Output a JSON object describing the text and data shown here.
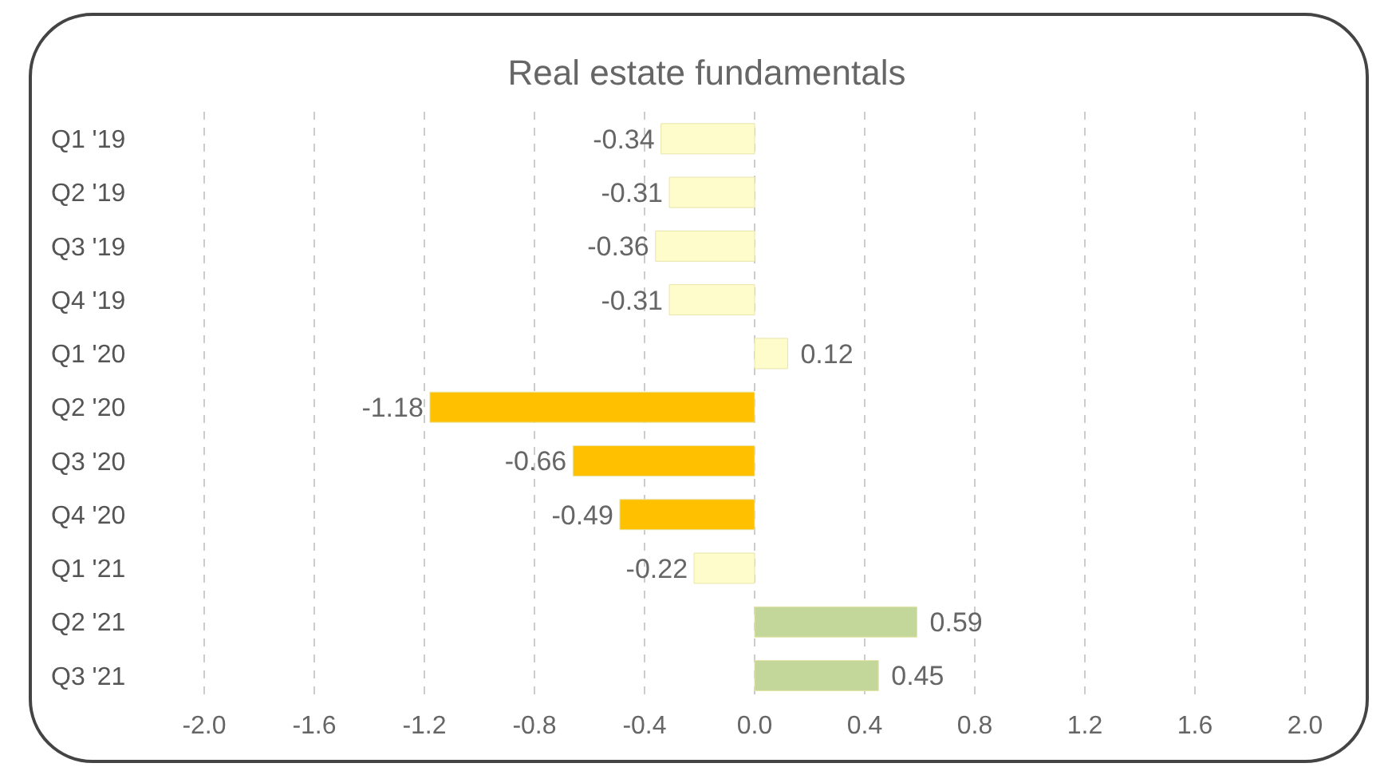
{
  "chart_data": {
    "type": "bar",
    "title": "Real estate fundamentals",
    "orientation": "horizontal",
    "categories": [
      "Q1 '19",
      "Q2 '19",
      "Q3 '19",
      "Q4 '19",
      "Q1 '20",
      "Q2 '20",
      "Q3 '20",
      "Q4 '20",
      "Q1 '21",
      "Q2 '21",
      "Q3 '21"
    ],
    "values": [
      -0.34,
      -0.31,
      -0.36,
      -0.31,
      0.12,
      -1.18,
      -0.66,
      -0.49,
      -0.22,
      0.59,
      0.45
    ],
    "colors": [
      "#fffccc",
      "#fffccc",
      "#fffccc",
      "#fffccc",
      "#fffccc",
      "#ffc000",
      "#ffc000",
      "#ffc000",
      "#fffccc",
      "#c4d79b",
      "#c4d79b"
    ],
    "xlim": [
      -2,
      2
    ],
    "xticks": [
      {
        "value": -2,
        "label": "-2.0"
      },
      {
        "value": -1.6,
        "label": "-1.6"
      },
      {
        "value": -1.2,
        "label": "-1.2"
      },
      {
        "value": -0.8,
        "label": "-0.8"
      },
      {
        "value": -0.4,
        "label": "-0.4"
      },
      {
        "value": 0,
        "label": "0.0"
      },
      {
        "value": 0.4,
        "label": "0.4"
      },
      {
        "value": 0.8,
        "label": "0.8"
      },
      {
        "value": 1.2,
        "label": "1.2"
      },
      {
        "value": 1.6,
        "label": "1.6"
      },
      {
        "value": 2,
        "label": "2.0"
      }
    ],
    "grid": "x",
    "data_labels": true
  }
}
